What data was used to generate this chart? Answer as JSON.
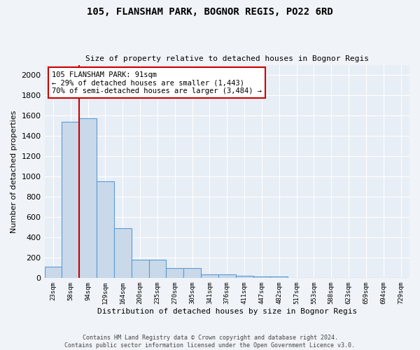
{
  "title": "105, FLANSHAM PARK, BOGNOR REGIS, PO22 6RD",
  "subtitle": "Size of property relative to detached houses in Bognor Regis",
  "xlabel": "Distribution of detached houses by size in Bognor Regis",
  "ylabel": "Number of detached properties",
  "bar_color": "#c9d9ea",
  "bar_edge_color": "#5b9bd5",
  "background_color": "#e8eef5",
  "fig_background_color": "#f0f4f8",
  "grid_color": "#ffffff",
  "categories": [
    "23sqm",
    "58sqm",
    "94sqm",
    "129sqm",
    "164sqm",
    "200sqm",
    "235sqm",
    "270sqm",
    "305sqm",
    "341sqm",
    "376sqm",
    "411sqm",
    "447sqm",
    "482sqm",
    "517sqm",
    "553sqm",
    "588sqm",
    "623sqm",
    "659sqm",
    "694sqm",
    "729sqm"
  ],
  "values": [
    110,
    1540,
    1570,
    950,
    490,
    183,
    183,
    100,
    100,
    40,
    40,
    25,
    18,
    18,
    0,
    0,
    0,
    0,
    0,
    0,
    0
  ],
  "ylim": [
    0,
    2100
  ],
  "yticks": [
    0,
    200,
    400,
    600,
    800,
    1000,
    1200,
    1400,
    1600,
    1800,
    2000
  ],
  "annotation_text": "105 FLANSHAM PARK: 91sqm\n← 29% of detached houses are smaller (1,443)\n70% of semi-detached houses are larger (3,484) →",
  "annotation_box_color": "#ffffff",
  "annotation_box_edge": "#cc0000",
  "property_line_color": "#cc0000",
  "footer_line1": "Contains HM Land Registry data © Crown copyright and database right 2024.",
  "footer_line2": "Contains public sector information licensed under the Open Government Licence v3.0."
}
